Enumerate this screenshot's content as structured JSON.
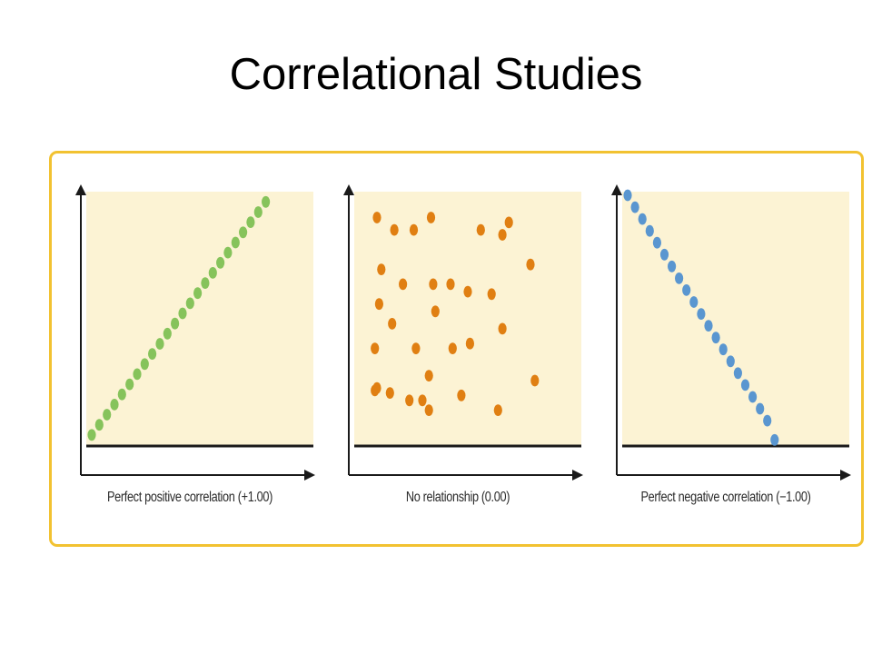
{
  "slide": {
    "title": "Correlational Studies"
  },
  "colors": {
    "frame_border": "#f2c231",
    "plot_background": "#fcf3d4",
    "axis": "#1a1a1a",
    "positive_points": "#86c35b",
    "none_points": "#e07f12",
    "negative_points": "#5a96d0"
  },
  "chart_data": [
    {
      "type": "scatter",
      "title": "",
      "caption": "Perfect positive correlation (+1.00)",
      "xlabel": "",
      "ylabel": "",
      "xlim": [
        0,
        10
      ],
      "ylim": [
        0,
        10
      ],
      "grid": false,
      "legend": "none",
      "correlation": 1.0,
      "points_color": "#86c35b",
      "x": [
        0.0,
        0.35,
        0.7,
        1.05,
        1.4,
        1.75,
        2.1,
        2.45,
        2.8,
        3.15,
        3.5,
        3.85,
        4.2,
        4.55,
        4.9,
        5.25,
        5.6,
        5.95,
        6.3,
        6.65,
        7.0,
        7.35,
        7.7,
        8.05
      ],
      "y": [
        0.3,
        0.71,
        1.12,
        1.53,
        1.94,
        2.35,
        2.76,
        3.17,
        3.58,
        3.99,
        4.4,
        4.81,
        5.22,
        5.63,
        6.04,
        6.45,
        6.86,
        7.27,
        7.68,
        8.09,
        8.5,
        8.91,
        9.32,
        9.73
      ]
    },
    {
      "type": "scatter",
      "title": "",
      "caption": "No relationship (0.00)",
      "xlabel": "",
      "ylabel": "",
      "xlim": [
        0,
        10
      ],
      "ylim": [
        0,
        10
      ],
      "grid": false,
      "legend": "none",
      "correlation": 0.0,
      "points_color": "#e07f12",
      "x": [
        0.8,
        1.6,
        2.5,
        3.3,
        5.6,
        6.6,
        6.9,
        7.9,
        1.0,
        2.0,
        3.4,
        4.2,
        5.0,
        6.1,
        0.9,
        3.5,
        1.5,
        0.7,
        2.6,
        4.3,
        5.1,
        6.6,
        0.7,
        1.4,
        3.2,
        0.8,
        2.9,
        4.7,
        8.1,
        2.3,
        3.2,
        6.4
      ],
      "y": [
        9.1,
        8.6,
        8.6,
        9.1,
        8.6,
        8.4,
        8.9,
        7.2,
        7.0,
        6.4,
        6.4,
        6.4,
        6.1,
        6.0,
        5.6,
        5.3,
        4.8,
        3.8,
        3.8,
        3.8,
        4.0,
        4.6,
        2.1,
        2.0,
        2.7,
        2.2,
        1.7,
        1.9,
        2.5,
        1.7,
        1.3,
        1.3
      ]
    },
    {
      "type": "scatter",
      "title": "",
      "caption": "Perfect negative correlation (−1.00)",
      "xlabel": "",
      "ylabel": "",
      "xlim": [
        0,
        10
      ],
      "ylim": [
        0,
        10
      ],
      "grid": false,
      "legend": "none",
      "correlation": -1.0,
      "points_color": "#5a96d0",
      "x": [
        0.0,
        0.34,
        0.68,
        1.02,
        1.36,
        1.7,
        2.04,
        2.38,
        2.72,
        3.06,
        3.4,
        3.74,
        4.08,
        4.42,
        4.76,
        5.1,
        5.44,
        5.78,
        6.12,
        6.46,
        6.8
      ],
      "y": [
        10.0,
        9.52,
        9.04,
        8.56,
        8.08,
        7.6,
        7.12,
        6.64,
        6.16,
        5.68,
        5.2,
        4.72,
        4.24,
        3.76,
        3.28,
        2.8,
        2.32,
        1.84,
        1.36,
        0.88,
        0.1
      ]
    }
  ]
}
